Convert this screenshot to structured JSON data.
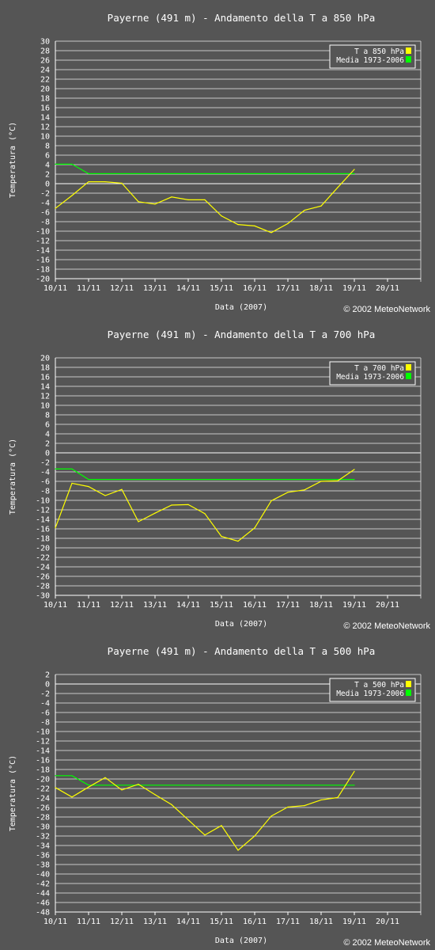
{
  "colors": {
    "background": "#555555",
    "grid": "#c8c8c8",
    "zero_line": "#ffffff",
    "axis_text": "#ffffff",
    "observed": "#ffff00",
    "mean": "#00ff00"
  },
  "copyright": "© 2002 MeteoNetwork",
  "chart_data": [
    {
      "type": "line",
      "title": "Payerne (491 m) - Andamento della T a 850 hPa",
      "xlabel": "Data (2007)",
      "ylabel": "Temperatura (°C)",
      "x_tick_labels": [
        "10/11",
        "11/11",
        "12/11",
        "13/11",
        "14/11",
        "15/11",
        "16/11",
        "17/11",
        "18/11",
        "19/11",
        "20/11"
      ],
      "y_tick_labels": [
        "30",
        "28",
        "26",
        "24",
        "22",
        "20",
        "18",
        "16",
        "14",
        "12",
        "10",
        "8",
        "6",
        "4",
        "2",
        "0",
        "-2",
        "-4",
        "-6",
        "-8",
        "-10",
        "-12",
        "-14",
        "-16",
        "-18",
        "-20"
      ],
      "ylim": [
        -20,
        30
      ],
      "y_step": 2,
      "grid": true,
      "legend_position": "top-right",
      "x_unit": "day of November 2007",
      "series": [
        {
          "name": "T a 850 hPa",
          "color": "#ffff00",
          "x": [
            10,
            10.5,
            11,
            11.5,
            12,
            12.5,
            13,
            13.5,
            14,
            14.5,
            15,
            15.5,
            16,
            16.5,
            17,
            17.5,
            18,
            18.5,
            19
          ],
          "values": [
            -5.2,
            -2.5,
            0.4,
            0.4,
            0.1,
            -3.8,
            -4.3,
            -2.8,
            -3.4,
            -3.4,
            -6.8,
            -8.6,
            -8.9,
            -10.3,
            -8.4,
            -5.6,
            -4.7,
            -0.8,
            3.0
          ]
        },
        {
          "name": "Media 1973-2006",
          "color": "#00ff00",
          "x": [
            10,
            10.5,
            11,
            19
          ],
          "values": [
            4.1,
            4.1,
            2.1,
            2.1
          ]
        }
      ]
    },
    {
      "type": "line",
      "title": "Payerne (491 m) - Andamento della T a 700 hPa",
      "xlabel": "Data (2007)",
      "ylabel": "Temperatura (°C)",
      "x_tick_labels": [
        "10/11",
        "11/11",
        "12/11",
        "13/11",
        "14/11",
        "15/11",
        "16/11",
        "17/11",
        "18/11",
        "19/11",
        "20/11"
      ],
      "y_tick_labels": [
        "20",
        "18",
        "16",
        "14",
        "12",
        "10",
        "8",
        "6",
        "4",
        "2",
        "0",
        "-2",
        "-4",
        "-6",
        "-8",
        "-10",
        "-12",
        "-14",
        "-16",
        "-18",
        "-20",
        "-22",
        "-24",
        "-26",
        "-28",
        "-30"
      ],
      "ylim": [
        -30,
        20
      ],
      "y_step": 2,
      "grid": true,
      "legend_position": "top-right",
      "x_unit": "day of November 2007",
      "series": [
        {
          "name": "T a 700 hPa",
          "color": "#ffff00",
          "x": [
            10,
            10.5,
            11,
            11.5,
            12,
            12.5,
            13,
            13.5,
            14,
            14.5,
            15,
            15.5,
            16,
            16.5,
            17,
            17.5,
            18,
            18.5,
            19
          ],
          "values": [
            -15.8,
            -6.4,
            -7.1,
            -9.0,
            -7.7,
            -14.5,
            -12.7,
            -11.0,
            -10.9,
            -12.8,
            -17.6,
            -18.6,
            -15.8,
            -10.1,
            -8.3,
            -7.8,
            -6.0,
            -5.9,
            -3.5
          ]
        },
        {
          "name": "Media 1973-2006",
          "color": "#00ff00",
          "x": [
            10,
            10.5,
            11,
            19
          ],
          "values": [
            -3.4,
            -3.4,
            -5.6,
            -5.6
          ]
        }
      ]
    },
    {
      "type": "line",
      "title": "Payerne (491 m) - Andamento della T a 500 hPa",
      "xlabel": "Data (2007)",
      "ylabel": "Temperatura (°C)",
      "x_tick_labels": [
        "10/11",
        "11/11",
        "12/11",
        "13/11",
        "14/11",
        "15/11",
        "16/11",
        "17/11",
        "18/11",
        "19/11",
        "20/11"
      ],
      "y_tick_labels": [
        "2",
        "0",
        "-2",
        "-4",
        "-6",
        "-8",
        "-10",
        "-12",
        "-14",
        "-16",
        "-18",
        "-20",
        "-22",
        "-24",
        "-26",
        "-28",
        "-30",
        "-32",
        "-34",
        "-36",
        "-38",
        "-40",
        "-42",
        "-44",
        "-46",
        "-48"
      ],
      "ylim": [
        -48,
        2
      ],
      "y_step": 2,
      "grid": true,
      "legend_position": "top-right",
      "x_unit": "day of November 2007",
      "series": [
        {
          "name": "T a 500 hPa",
          "color": "#ffff00",
          "x": [
            10,
            10.5,
            11,
            11.5,
            12,
            12.5,
            13,
            13.5,
            14,
            14.5,
            15,
            15.5,
            16,
            16.5,
            17,
            17.5,
            18,
            18.5,
            19
          ],
          "values": [
            -21.8,
            -23.8,
            -21.7,
            -19.7,
            -22.3,
            -21.1,
            -23.3,
            -25.4,
            -28.6,
            -31.8,
            -29.8,
            -35.0,
            -32.0,
            -27.8,
            -25.9,
            -25.6,
            -24.4,
            -23.9,
            -18.4
          ]
        },
        {
          "name": "Media 1973-2006",
          "color": "#00ff00",
          "x": [
            10,
            10.5,
            11,
            19
          ],
          "values": [
            -19.3,
            -19.3,
            -21.3,
            -21.3
          ]
        }
      ]
    }
  ]
}
